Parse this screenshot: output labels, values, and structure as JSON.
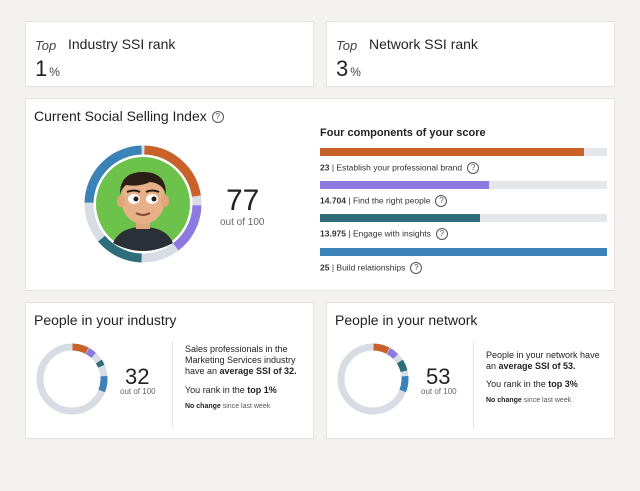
{
  "industry_rank": {
    "top_label": "Top",
    "title": "Industry SSI rank",
    "value": "1",
    "unit": "%"
  },
  "network_rank": {
    "top_label": "Top",
    "title": "Network SSI rank",
    "value": "3",
    "unit": "%"
  },
  "ssi": {
    "title": "Current Social Selling Index",
    "help_icon": "?",
    "score": "77",
    "score_sub": "out of 100",
    "components_title": "Four components of your score",
    "components": [
      {
        "value": "23",
        "label": "Establish your professional brand",
        "fraction": 0.92,
        "color": "#c8622a"
      },
      {
        "value": "14.704",
        "label": "Find the right people",
        "fraction": 0.588,
        "color": "#8c7ae0"
      },
      {
        "value": "13.975",
        "label": "Engage with insights",
        "fraction": 0.559,
        "color": "#2f6d7a"
      },
      {
        "value": "25",
        "label": "Build relationships",
        "fraction": 1.0,
        "color": "#3a82b8"
      }
    ]
  },
  "industry_peers": {
    "title": "People in your industry",
    "score": "32",
    "score_sub": "out of 100",
    "desc_1": "Sales professionals in the",
    "desc_2": "Marketing Services industry",
    "desc_3_pre": "have an ",
    "desc_3_bold": "average SSI of 32.",
    "rank_pre": "You rank in the ",
    "rank_bold": "top 1%",
    "change_bold": "No change",
    "change_rest": " since last week"
  },
  "network_peers": {
    "title": "People in your network",
    "score": "53",
    "score_sub": "out of 100",
    "desc_1": "People in your network have",
    "desc_2_pre": "an ",
    "desc_2_bold": "average SSI of 53.",
    "rank_pre": "You rank in the ",
    "rank_bold": "top 3%",
    "change_bold": "No change",
    "change_rest": " since last week"
  },
  "colors": {
    "brand": "#c8622a",
    "find": "#8c7ae0",
    "engage": "#2f6d7a",
    "build": "#3a82b8",
    "track": "#d8dde3"
  }
}
